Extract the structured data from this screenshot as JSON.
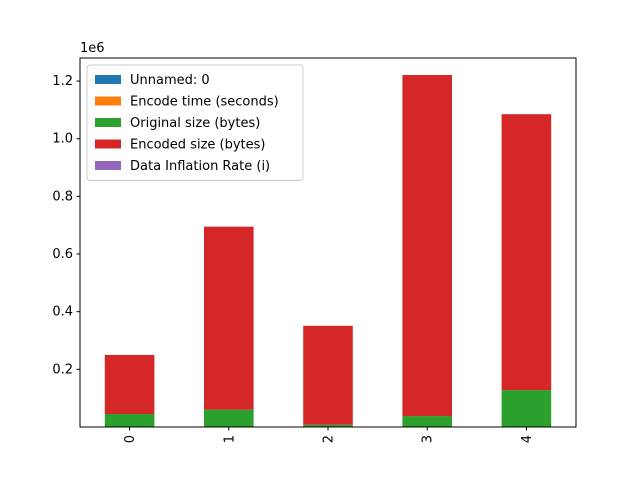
{
  "chart_data": {
    "type": "bar",
    "stacked": true,
    "categories": [
      "0",
      "1",
      "2",
      "3",
      "4"
    ],
    "series": [
      {
        "name": "Unnamed: 0",
        "color": "#1f77b4",
        "values": [
          0,
          1,
          2,
          3,
          4
        ]
      },
      {
        "name": "Encode time (seconds)",
        "color": "#ff7f0e",
        "values": [
          0.3,
          0.8,
          0.4,
          1.3,
          1.2
        ]
      },
      {
        "name": "Original size (bytes)",
        "color": "#2ca02c",
        "values": [
          45000,
          60000,
          8000,
          38000,
          128000
        ]
      },
      {
        "name": "Encoded size (bytes)",
        "color": "#d62728",
        "values": [
          205000,
          635000,
          343000,
          1183000,
          957000
        ]
      },
      {
        "name": "Data Inflation Rate (i)",
        "color": "#9467bd",
        "values": [
          4.6,
          10.6,
          43.9,
          31.6,
          8.5
        ]
      }
    ],
    "ylim": [
      0,
      1280000
    ],
    "yticks": [
      200000,
      400000,
      600000,
      800000,
      1000000,
      1200000
    ],
    "ytick_labels": [
      "0.2",
      "0.4",
      "0.6",
      "0.8",
      "1.0",
      "1.2"
    ],
    "offset_label": "1e6",
    "xlabel": "",
    "ylabel": "",
    "legend_position": "upper-left",
    "grid": false
  }
}
